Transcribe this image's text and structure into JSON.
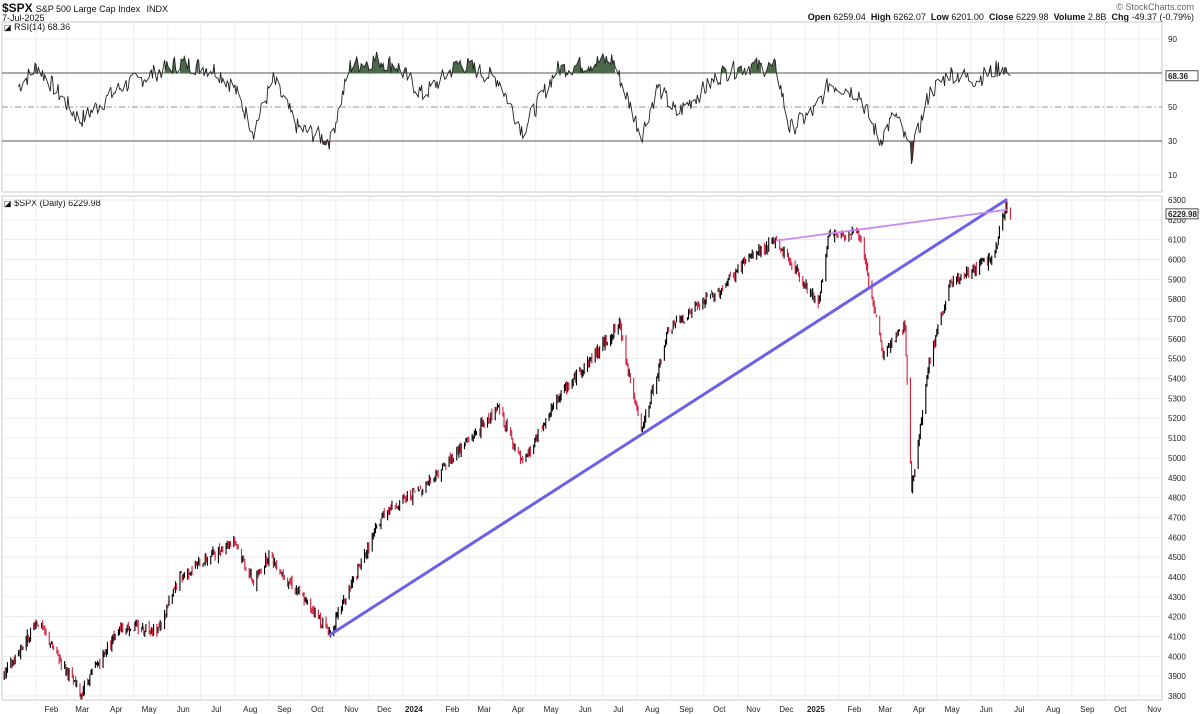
{
  "header": {
    "symbol": "$SPX",
    "name": "S&P 500 Large Cap Index",
    "exchange": "INDX",
    "date": "7-Jul-2025",
    "brand": "© StockCharts.com",
    "quote": {
      "open_label": "Open",
      "open": "6259.04",
      "high_label": "High",
      "high": "6262.07",
      "low_label": "Low",
      "low": "6201.00",
      "close_label": "Close",
      "close": "6229.98",
      "volume_label": "Volume",
      "volume": "2.8B",
      "chg_label": "Chg",
      "chg": "-49.37 (-0.79%)"
    }
  },
  "rsi_panel": {
    "label": "RSI(14) 68.36",
    "current_tag": "68.36",
    "current_value": 68.36,
    "ticks": [
      10,
      30,
      50,
      70,
      90
    ],
    "tick_labels": [
      "10",
      "30",
      "50",
      "90"
    ],
    "ylim": [
      0,
      100
    ],
    "overbought": 70,
    "oversold": 30
  },
  "price_panel": {
    "label": "$SPX (Daily) 6229.98",
    "current_tag": "6229.98",
    "current_value": 6229.98,
    "ylim": [
      3780,
      6320
    ],
    "ticks": [
      3800,
      3900,
      4000,
      4100,
      4200,
      4300,
      4400,
      4500,
      4600,
      4700,
      4800,
      4900,
      5000,
      5100,
      5200,
      5300,
      5400,
      5500,
      5600,
      5700,
      5800,
      5900,
      6000,
      6100,
      6200,
      6300
    ],
    "tick_labels": [
      "3800",
      "3900",
      "4000",
      "4100",
      "4200",
      "4300",
      "4400",
      "4500",
      "4600",
      "4700",
      "4800",
      "4900",
      "5000",
      "5100",
      "5200",
      "5300",
      "5400",
      "5500",
      "5600",
      "5700",
      "5800",
      "5900",
      "6000",
      "6100",
      "6200",
      "6300"
    ]
  },
  "x_axis": {
    "labels": [
      "Feb",
      "Mar",
      "Apr",
      "May",
      "Jun",
      "Jul",
      "Aug",
      "Sep",
      "Oct",
      "Nov",
      "Dec",
      "2024",
      "Feb",
      "Mar",
      "Apr",
      "May",
      "Jun",
      "Jul",
      "Aug",
      "Sep",
      "Oct",
      "Nov",
      "Dec",
      "2025",
      "Feb",
      "Mar",
      "Apr",
      "May",
      "Jun",
      "Jul",
      "Aug",
      "Sep",
      "Oct",
      "Nov"
    ],
    "year_labels": [
      "2024",
      "2025"
    ]
  },
  "chart_data": [
    {
      "type": "line",
      "title": "RSI(14) 68.36",
      "ylim": [
        0,
        100
      ],
      "reference_lines": [
        30,
        50,
        70
      ],
      "x": [
        "2023-01-16",
        "2023-02-02",
        "2023-03-13",
        "2023-04-20",
        "2023-06-12",
        "2023-07-14",
        "2023-07-31",
        "2023-08-18",
        "2023-09-05",
        "2023-09-27",
        "2023-10-27",
        "2023-11-14",
        "2023-12-08",
        "2023-12-27",
        "2024-01-19",
        "2024-02-22",
        "2024-03-28",
        "2024-04-19",
        "2024-05-20",
        "2024-06-14",
        "2024-07-10",
        "2024-07-31",
        "2024-08-05",
        "2024-08-20",
        "2024-09-06",
        "2024-10-18",
        "2024-11-11",
        "2024-12-06",
        "2024-12-18",
        "2025-01-10",
        "2025-01-23",
        "2025-02-19",
        "2025-03-10",
        "2025-03-24",
        "2025-04-08",
        "2025-04-24",
        "2025-05-13",
        "2025-06-05",
        "2025-06-30",
        "2025-07-07"
      ],
      "values": [
        62,
        74,
        42,
        62,
        76,
        72,
        62,
        36,
        66,
        38,
        30,
        74,
        78,
        74,
        57,
        76,
        66,
        36,
        72,
        75,
        78,
        42,
        33,
        62,
        46,
        70,
        74,
        73,
        37,
        48,
        64,
        58,
        30,
        46,
        22,
        58,
        70,
        66,
        74,
        68.36
      ]
    },
    {
      "type": "bar",
      "style": "daily price bars (black up, red down)",
      "title": "$SPX (Daily) 6229.98",
      "ylabel": "",
      "ylim": [
        3780,
        6320
      ],
      "x": [
        "2023-01-03",
        "2023-02-02",
        "2023-03-13",
        "2023-04-18",
        "2023-05-24",
        "2023-06-12",
        "2023-07-31",
        "2023-08-18",
        "2023-09-01",
        "2023-10-27",
        "2023-12-14",
        "2024-01-19",
        "2024-03-28",
        "2024-04-19",
        "2024-05-21",
        "2024-07-16",
        "2024-08-05",
        "2024-08-30",
        "2024-10-18",
        "2024-11-11",
        "2024-12-06",
        "2025-01-13",
        "2025-01-23",
        "2025-02-19",
        "2025-03-13",
        "2025-04-02",
        "2025-04-08",
        "2025-04-24",
        "2025-05-13",
        "2025-06-23",
        "2025-07-03",
        "2025-07-07"
      ],
      "values": [
        3900,
        4180,
        3810,
        4150,
        4140,
        4400,
        4590,
        4370,
        4510,
        4120,
        4720,
        4850,
        5250,
        4960,
        5300,
        5670,
        5120,
        5650,
        5860,
        6010,
        6090,
        5780,
        6120,
        6140,
        5520,
        5670,
        4840,
        5480,
        5870,
        6020,
        6280,
        6229.98
      ]
    }
  ],
  "trendlines": [
    {
      "name": "support",
      "color": "#6b61e8",
      "from": {
        "x": "2023-10-27",
        "y": 4110
      },
      "to": {
        "x": "2025-07-03",
        "y": 6300
      }
    },
    {
      "name": "resistance",
      "color": "#c78cf0",
      "from": {
        "x": "2024-12-06",
        "y": 6095
      },
      "to": {
        "x": "2025-07-03",
        "y": 6250
      }
    }
  ],
  "colors": {
    "up": "#000000",
    "down": "#d21f3c",
    "rsi_line": "#222222",
    "rsi_overbought_fill": "#4a6a4a",
    "rsi_oversold_fill": "#6a3030",
    "grid": "#e6e6e6"
  }
}
